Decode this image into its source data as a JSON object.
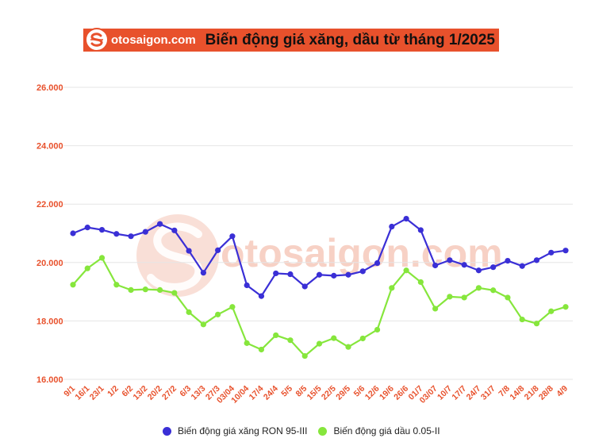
{
  "header": {
    "brand": "otosaigon.com",
    "title": "Biến động giá xăng, dầu từ tháng 1/2025"
  },
  "watermark": "otosaigon.com",
  "colors": {
    "accent": "#e8512c",
    "series_ron95": "#3a2fd6",
    "series_diesel": "#86e63c",
    "grid": "#e6e6e6"
  },
  "chart_data": {
    "type": "line",
    "title": "Biến động giá xăng, dầu từ tháng 1/2025",
    "categories": [
      "9/1",
      "16/1",
      "23/1",
      "1/2",
      "6/2",
      "13/2",
      "20/2",
      "27/2",
      "6/3",
      "13/3",
      "27/3",
      "03/04",
      "10/04",
      "17/4",
      "24/4",
      "5/5",
      "8/5",
      "15/5",
      "22/5",
      "29/5",
      "5/6",
      "12/6",
      "19/6",
      "26/6",
      "01/7",
      "03/07",
      "10/7",
      "17/7",
      "24/7",
      "31/7",
      "7/8",
      "14/8",
      "21/8",
      "28/8",
      "4/9"
    ],
    "y_ticks": [
      "16.000",
      "18.000",
      "20.000",
      "22.000",
      "24.000",
      "26.000"
    ],
    "ylim": [
      16000,
      26000
    ],
    "grid": true,
    "legend_position": "bottom",
    "series": [
      {
        "name": "Biến động giá xăng RON 95-III",
        "values": [
          21000,
          21200,
          21120,
          20980,
          20900,
          21050,
          21320,
          21100,
          20400,
          19650,
          20420,
          20900,
          19220,
          18850,
          19630,
          19600,
          19180,
          19580,
          19550,
          19580,
          19700,
          19980,
          21230,
          21500,
          21110,
          19900,
          20080,
          19920,
          19730,
          19840,
          20060,
          19880,
          20080,
          20340,
          20410
        ]
      },
      {
        "name": "Biến động giá dầu 0.05-II",
        "values": [
          19240,
          19800,
          20160,
          19240,
          19060,
          19080,
          19060,
          18960,
          18300,
          17880,
          18220,
          18480,
          17240,
          17020,
          17510,
          17340,
          16800,
          17220,
          17410,
          17110,
          17400,
          17700,
          19130,
          19730,
          19330,
          18420,
          18830,
          18800,
          19130,
          19050,
          18800,
          18050,
          17910,
          18330,
          18480
        ]
      }
    ]
  }
}
